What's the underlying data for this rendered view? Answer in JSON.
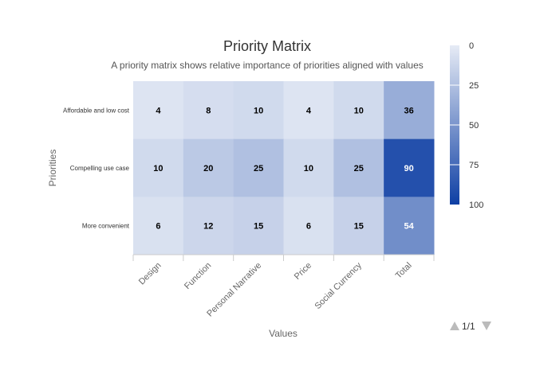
{
  "chart_data": {
    "type": "heatmap",
    "title": "Priority Matrix",
    "subtitle": "A priority matrix shows relative importance of priorities aligned with values",
    "xlabel": "Values",
    "ylabel": "Priorities",
    "x_categories": [
      "Design",
      "Function",
      "Personal Narrative",
      "Price",
      "Social Currency",
      "Total"
    ],
    "y_categories": [
      "Affordable and low cost",
      "Compelling use case",
      "More convenient"
    ],
    "values": [
      [
        4,
        8,
        10,
        4,
        10,
        36
      ],
      [
        10,
        20,
        25,
        10,
        25,
        90
      ],
      [
        6,
        12,
        15,
        6,
        15,
        54
      ]
    ],
    "color_axis": {
      "min": 0,
      "max": 100,
      "min_color": "#e6ebf5",
      "max_color": "#0e3fa4",
      "ticks": [
        "0",
        "25",
        "50",
        "75",
        "100"
      ]
    },
    "legend_position": "right",
    "legend_pager": "1/1"
  }
}
